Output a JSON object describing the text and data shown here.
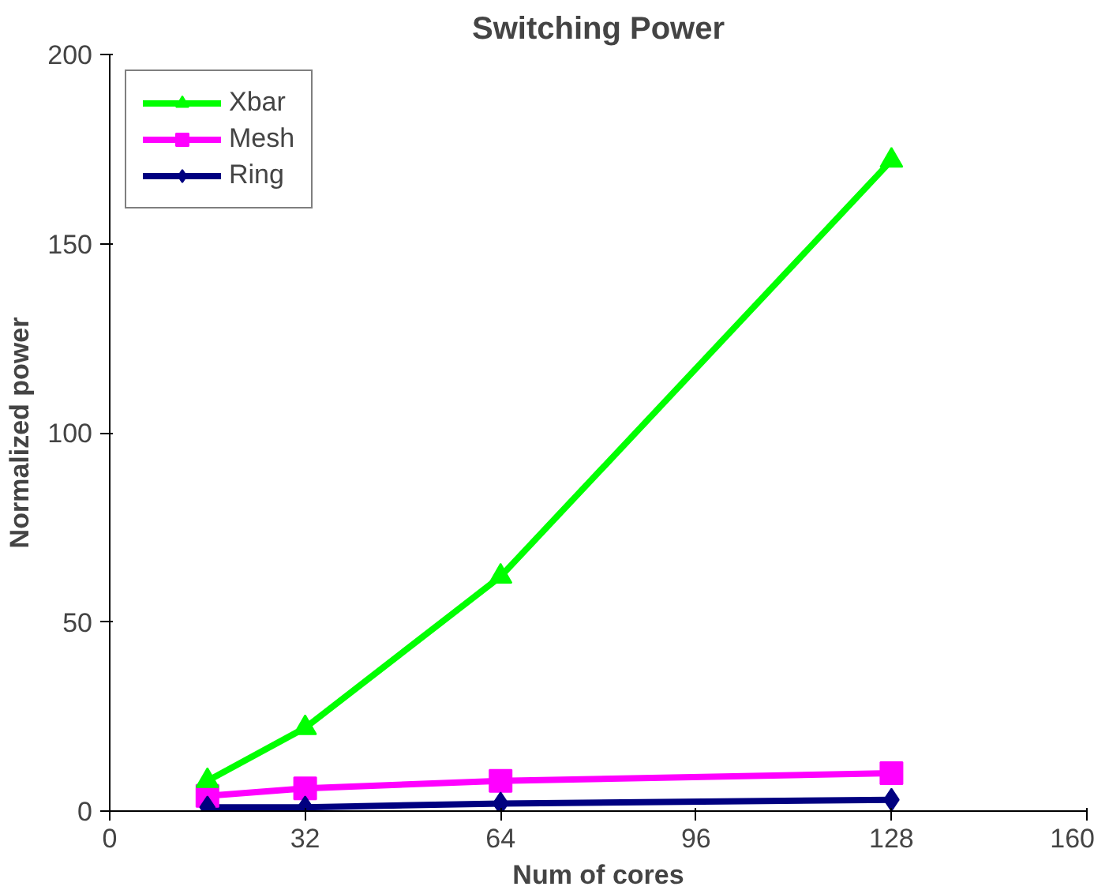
{
  "chart_data": {
    "type": "line",
    "title": "Switching Power",
    "xlabel": "Num of cores",
    "ylabel": "Normalized power",
    "x": [
      16,
      32,
      64,
      128
    ],
    "series": [
      {
        "name": "Xbar",
        "color": "#00ff00",
        "marker": "triangle",
        "values": [
          8,
          22,
          62,
          172
        ]
      },
      {
        "name": "Mesh",
        "color": "#ff00ff",
        "marker": "square",
        "values": [
          4,
          6,
          8,
          10
        ]
      },
      {
        "name": "Ring",
        "color": "#000080",
        "marker": "diamond",
        "values": [
          1,
          1,
          2,
          3
        ]
      }
    ],
    "xlim": [
      0,
      160
    ],
    "xticks": [
      0,
      32,
      64,
      96,
      128,
      160
    ],
    "ylim": [
      0,
      200
    ],
    "yticks": [
      0,
      50,
      100,
      150,
      200
    ],
    "grid": false,
    "legend": "top left",
    "line_style": "solid"
  }
}
